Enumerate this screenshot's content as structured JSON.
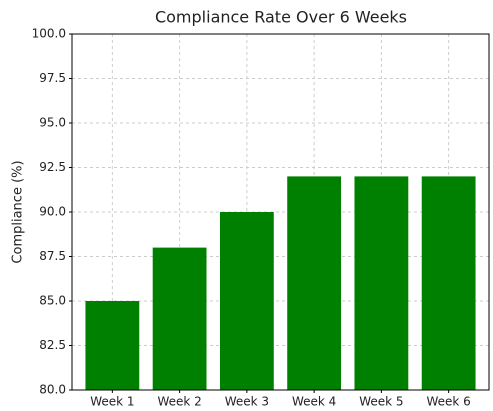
{
  "chart_data": {
    "type": "bar",
    "title": "Compliance Rate Over 6 Weeks",
    "ylabel": "Compliance (%)",
    "categories": [
      "Week 1",
      "Week 2",
      "Week 3",
      "Week 4",
      "Week 5",
      "Week 6"
    ],
    "values": [
      85,
      88,
      90,
      92,
      92,
      92
    ],
    "color": "#008000",
    "ylim": [
      80,
      100
    ],
    "yticks": [
      {
        "value": 80,
        "label": "80.0"
      },
      82.5,
      {
        "value": 85,
        "label": "85.0"
      },
      87.5,
      {
        "value": 90,
        "label": "90.0"
      },
      92.5,
      {
        "value": 95,
        "label": "95.0"
      },
      97.5,
      {
        "value": 100,
        "label": "100.0"
      }
    ],
    "grid": true
  }
}
